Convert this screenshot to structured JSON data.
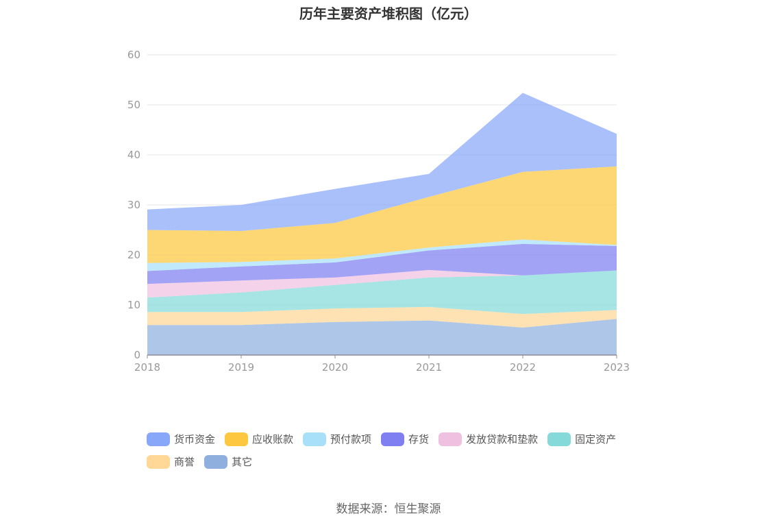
{
  "chart_data": {
    "type": "area",
    "stacked": true,
    "title": "历年主要资产堆积图（亿元）",
    "x": [
      "2018",
      "2019",
      "2020",
      "2021",
      "2022",
      "2023"
    ],
    "ylim": [
      0,
      60
    ],
    "yticks": [
      "0",
      "10",
      "20",
      "30",
      "40",
      "50",
      "60"
    ],
    "grid": true,
    "legend_position": "bottom",
    "series": [
      {
        "name": "其它",
        "color": "#8fb0de",
        "values": [
          6.0,
          6.0,
          6.6,
          6.9,
          5.5,
          7.2
        ]
      },
      {
        "name": "商誉",
        "color": "#ffd796",
        "values": [
          2.6,
          2.6,
          2.7,
          2.7,
          2.7,
          1.8
        ]
      },
      {
        "name": "固定资产",
        "color": "#85d9d9",
        "values": [
          2.9,
          3.9,
          4.7,
          5.9,
          7.7,
          7.9
        ]
      },
      {
        "name": "发放贷款和垫款",
        "color": "#f0c0e0",
        "values": [
          2.7,
          2.4,
          1.5,
          1.5,
          0.0,
          0.0
        ]
      },
      {
        "name": "存货",
        "color": "#7f7ff2",
        "values": [
          2.6,
          2.8,
          3.0,
          3.9,
          6.3,
          4.9
        ]
      },
      {
        "name": "预付款项",
        "color": "#a8e0fa",
        "values": [
          1.6,
          0.9,
          0.8,
          0.6,
          0.9,
          0.2
        ]
      },
      {
        "name": "应收账款",
        "color": "#fdc840",
        "values": [
          6.6,
          6.2,
          7.1,
          10.1,
          13.5,
          15.7
        ]
      },
      {
        "name": "货币资金",
        "color": "#88a7f9",
        "values": [
          4.1,
          5.2,
          6.8,
          4.6,
          15.8,
          6.5
        ]
      }
    ]
  },
  "legend_order": [
    {
      "name": "货币资金",
      "color": "#88a7f9"
    },
    {
      "name": "应收账款",
      "color": "#fdc840"
    },
    {
      "name": "预付款项",
      "color": "#a8e0fa"
    },
    {
      "name": "存货",
      "color": "#7f7ff2"
    },
    {
      "name": "发放贷款和垫款",
      "color": "#f0c0e0"
    },
    {
      "name": "固定资产",
      "color": "#85d9d9"
    },
    {
      "name": "商誉",
      "color": "#ffd796"
    },
    {
      "name": "其它",
      "color": "#8fb0de"
    }
  ],
  "source": "数据来源：恒生聚源"
}
